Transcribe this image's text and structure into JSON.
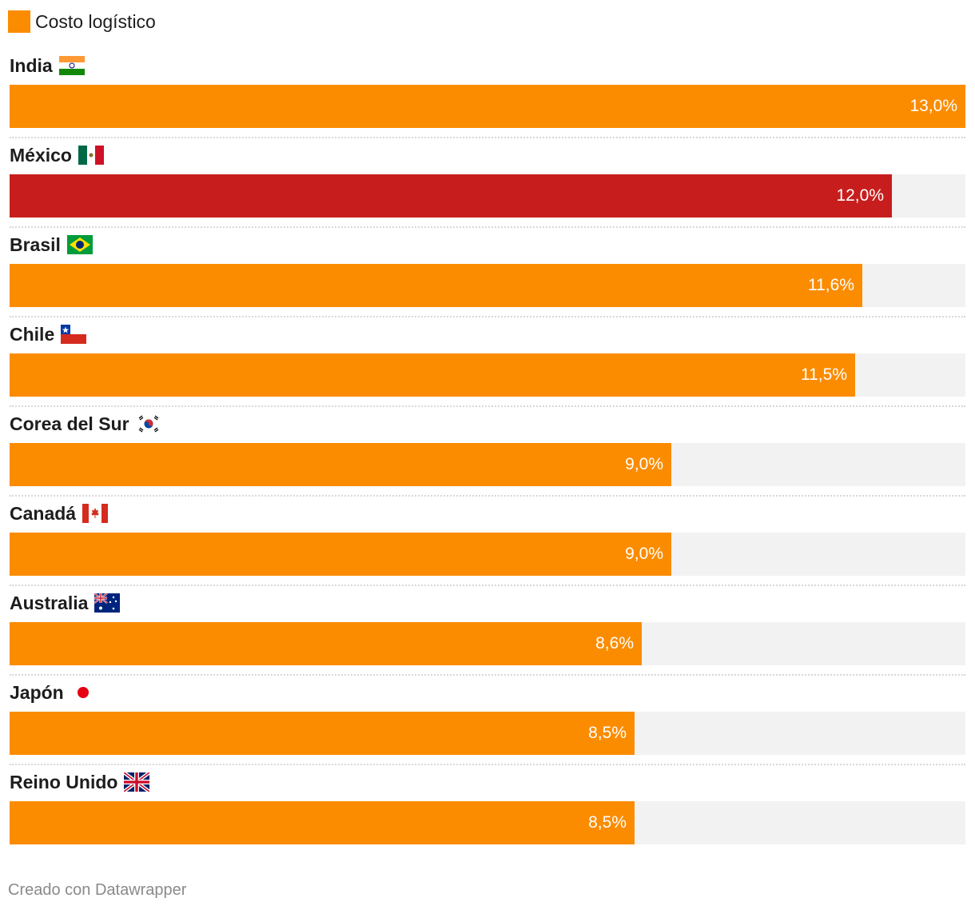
{
  "legend": {
    "label": "Costo logístico",
    "color": "#fb8c00"
  },
  "footer": {
    "credit": "Creado con Datawrapper"
  },
  "colors": {
    "default_bar": "#fb8c00",
    "highlight_bar": "#c71e1d",
    "track": "#f2f2f2"
  },
  "chart_data": {
    "type": "bar",
    "orientation": "horizontal",
    "series": [
      {
        "name": "Costo logístico",
        "values": [
          13.0,
          12.0,
          11.6,
          11.5,
          9.0,
          9.0,
          8.6,
          8.5,
          8.5
        ]
      }
    ],
    "categories": [
      "India",
      "México",
      "Brasil",
      "Chile",
      "Corea del Sur",
      "Canadá",
      "Australia",
      "Japón",
      "Reino Unido"
    ],
    "value_labels": [
      "13,0%",
      "12,0%",
      "11,6%",
      "11,5%",
      "9,0%",
      "9,0%",
      "8,6%",
      "8,5%",
      "8,5%"
    ],
    "flags": [
      "india-flag-icon",
      "mexico-flag-icon",
      "brazil-flag-icon",
      "chile-flag-icon",
      "south-korea-flag-icon",
      "canada-flag-icon",
      "australia-flag-icon",
      "japan-flag-icon",
      "uk-flag-icon"
    ],
    "highlight": "México",
    "xlim": [
      0,
      13.0
    ],
    "legend_position": "top-left",
    "grid": false
  }
}
